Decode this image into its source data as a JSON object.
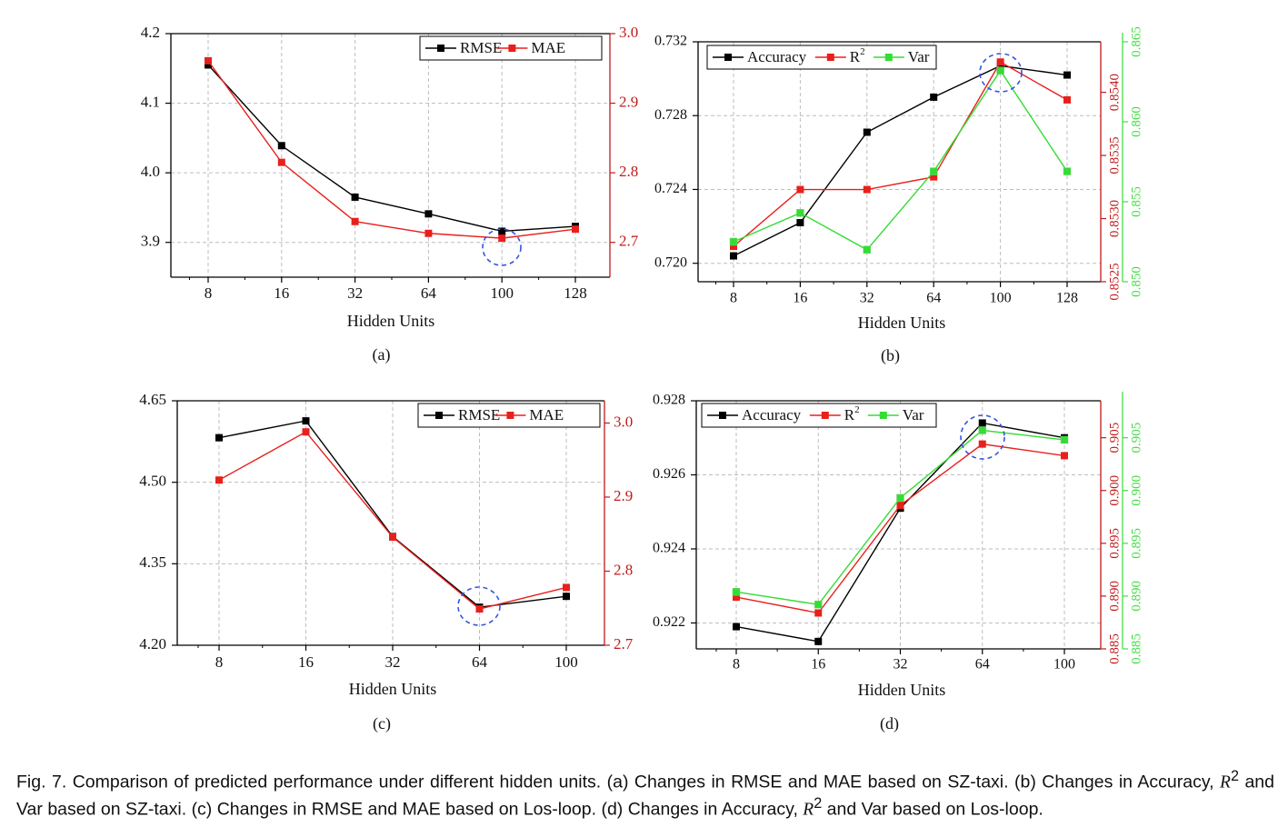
{
  "colors": {
    "black": "#000000",
    "red": "#e8201c",
    "green": "#33dd33",
    "blue_circle": "#3355dd",
    "red_axis": "#c11a1a",
    "green_axis": "#44dd44"
  },
  "caption": {
    "part1": "Fig. 7. Comparison of predicted performance under different hidden units. (a) Changes in RMSE and MAE based on SZ-taxi. (b) Changes in Accuracy, ",
    "r": "R",
    "sup": "2",
    "part2": " and Var based on SZ-taxi. (c) Changes in RMSE and MAE based on Los-loop. (d) Changes in Accuracy, ",
    "part3": " and Var based on Los-loop."
  },
  "chart_data": [
    {
      "id": "a",
      "type": "line",
      "panel_label": "(a)",
      "xlabel": "Hidden Units",
      "categories": [
        "8",
        "16",
        "32",
        "64",
        "100",
        "128"
      ],
      "axes": [
        {
          "side": "left",
          "ylim": [
            3.85,
            4.2
          ],
          "ticks": [
            3.9,
            4.0,
            4.1,
            4.2
          ],
          "tick_labels": [
            "3.9",
            "4.0",
            "4.1",
            "4.2"
          ],
          "color": "black"
        },
        {
          "side": "right",
          "ylim": [
            2.65,
            3.0
          ],
          "ticks": [
            2.7,
            2.8,
            2.9,
            3.0
          ],
          "tick_labels": [
            "2.7",
            "2.8",
            "2.9",
            "3.0"
          ],
          "color": "red_axis"
        }
      ],
      "series": [
        {
          "name": "RMSE",
          "axis": 0,
          "color": "black",
          "values": [
            4.155,
            4.039,
            3.965,
            3.941,
            3.916,
            3.923
          ]
        },
        {
          "name": "MAE",
          "axis": 1,
          "color": "red",
          "values": [
            2.961,
            2.815,
            2.73,
            2.713,
            2.706,
            2.719
          ]
        }
      ],
      "legend": {
        "placement": "top-right",
        "entries": [
          "RMSE",
          "MAE"
        ]
      },
      "grid": true,
      "highlight_index": 4
    },
    {
      "id": "b",
      "type": "line",
      "panel_label": "(b)",
      "xlabel": "Hidden Units",
      "categories": [
        "8",
        "16",
        "32",
        "64",
        "100",
        "128"
      ],
      "axes": [
        {
          "side": "left",
          "ylim": [
            0.719,
            0.732
          ],
          "ticks": [
            0.72,
            0.724,
            0.728,
            0.732
          ],
          "tick_labels": [
            "0.720",
            "0.724",
            "0.728",
            "0.732"
          ],
          "color": "black"
        },
        {
          "side": "right",
          "ylim": [
            0.8525,
            0.8544
          ],
          "ticks": [
            0.8525,
            0.853,
            0.8535,
            0.854
          ],
          "tick_labels": [
            "0.8525",
            "0.8530",
            "0.8535",
            "0.8540"
          ],
          "color": "red_axis"
        },
        {
          "side": "right2",
          "ylim": [
            0.85,
            0.865
          ],
          "ticks": [
            0.85,
            0.855,
            0.86,
            0.865
          ],
          "tick_labels": [
            "0.850",
            "0.855",
            "0.860",
            "0.865"
          ],
          "color": "green_axis"
        }
      ],
      "series": [
        {
          "name": "Accuracy",
          "axis": 0,
          "color": "black",
          "values": [
            0.7204,
            0.7222,
            0.7271,
            0.729,
            0.7307,
            0.7302
          ]
        },
        {
          "name": "R2",
          "axis": 1,
          "color": "red",
          "values": [
            0.85278,
            0.85323,
            0.85323,
            0.85333,
            0.85424,
            0.85394
          ]
        },
        {
          "name": "Var",
          "axis": 2,
          "color": "green",
          "values": [
            0.8525,
            0.8543,
            0.852,
            0.8569,
            0.8632,
            0.8569
          ]
        }
      ],
      "legend": {
        "placement": "top-left",
        "entries": [
          "Accuracy",
          "R",
          "Var"
        ],
        "r_sup": "2"
      },
      "grid": true,
      "highlight_index": 4
    },
    {
      "id": "c",
      "type": "line",
      "panel_label": "(c)",
      "xlabel": "Hidden Units",
      "categories": [
        "8",
        "16",
        "32",
        "64",
        "100"
      ],
      "axes": [
        {
          "side": "left",
          "ylim": [
            4.2,
            4.65
          ],
          "ticks": [
            4.2,
            4.35,
            4.5,
            4.65
          ],
          "tick_labels": [
            "4.20",
            "4.35",
            "4.50",
            "4.65"
          ],
          "color": "black"
        },
        {
          "side": "right",
          "ylim": [
            2.7,
            3.03
          ],
          "ticks": [
            2.7,
            2.8,
            2.9,
            3.0
          ],
          "tick_labels": [
            "2.7",
            "2.8",
            "2.9",
            "3.0"
          ],
          "color": "red_axis"
        }
      ],
      "series": [
        {
          "name": "RMSE",
          "axis": 0,
          "color": "black",
          "values": [
            4.582,
            4.613,
            4.4,
            4.27,
            4.29
          ]
        },
        {
          "name": "MAE",
          "axis": 1,
          "color": "red",
          "values": [
            2.923,
            2.988,
            2.846,
            2.749,
            2.778
          ]
        }
      ],
      "legend": {
        "placement": "top-right",
        "entries": [
          "RMSE",
          "MAE"
        ]
      },
      "grid": true,
      "highlight_index": 3
    },
    {
      "id": "d",
      "type": "line",
      "panel_label": "(d)",
      "xlabel": "Hidden Units",
      "categories": [
        "8",
        "16",
        "32",
        "64",
        "100"
      ],
      "axes": [
        {
          "side": "left",
          "ylim": [
            0.9213,
            0.928
          ],
          "ticks": [
            0.922,
            0.924,
            0.926,
            0.928
          ],
          "tick_labels": [
            "0.922",
            "0.924",
            "0.926",
            "0.928"
          ],
          "color": "black"
        },
        {
          "side": "right",
          "ylim": [
            0.885,
            0.9085
          ],
          "ticks": [
            0.885,
            0.89,
            0.895,
            0.9,
            0.905
          ],
          "tick_labels": [
            "0.885",
            "0.890",
            "0.895",
            "0.900",
            "0.905"
          ],
          "color": "red_axis"
        },
        {
          "side": "right2",
          "ylim": [
            0.885,
            0.9085
          ],
          "ticks": [
            0.885,
            0.89,
            0.895,
            0.9,
            0.905
          ],
          "tick_labels": [
            "0.885",
            "0.890",
            "0.895",
            "0.900",
            "0.905"
          ],
          "color": "green_axis"
        }
      ],
      "series": [
        {
          "name": "Accuracy",
          "axis": 0,
          "color": "black",
          "values": [
            0.9219,
            0.9215,
            0.9251,
            0.9274,
            0.927
          ]
        },
        {
          "name": "R2",
          "axis": 1,
          "color": "red",
          "values": [
            0.8899,
            0.8884,
            0.8986,
            0.9044,
            0.9033
          ]
        },
        {
          "name": "Var",
          "axis": 2,
          "color": "green",
          "values": [
            0.8904,
            0.8892,
            0.8993,
            0.9057,
            0.9048
          ]
        }
      ],
      "legend": {
        "placement": "top-left",
        "entries": [
          "Accuracy",
          "R",
          "Var"
        ],
        "r_sup": "2"
      },
      "grid": true,
      "highlight_index": 3
    }
  ]
}
